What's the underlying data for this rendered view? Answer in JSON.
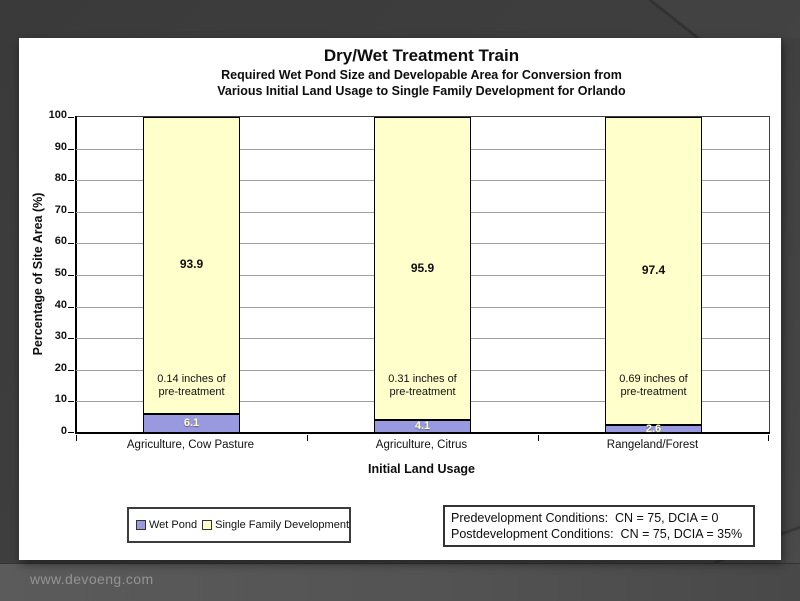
{
  "page": {
    "footer_url": "www.devoeng.com"
  },
  "chart_data": {
    "type": "bar",
    "stacked": true,
    "title": "Dry/Wet Treatment Train",
    "subtitle_lines": [
      "Required Wet Pond Size and Developable Area for Conversion from",
      "Various Initial Land Usage to Single Family Development for Orlando"
    ],
    "categories": [
      "Agriculture, Cow Pasture",
      "Agriculture, Citrus",
      "Rangeland/Forest"
    ],
    "series": [
      {
        "name": "Wet Pond",
        "color": "#9999E0",
        "values": [
          6.1,
          4.1,
          2.6
        ]
      },
      {
        "name": "Single Family Development",
        "color": "#FFFFCC",
        "values": [
          93.9,
          95.9,
          97.4
        ]
      }
    ],
    "bar_annotations": [
      [
        "0.14 inches of",
        "pre-treatment"
      ],
      [
        "0.31 inches of",
        "pre-treatment"
      ],
      [
        "0.69 inches of",
        "pre-treatment"
      ]
    ],
    "xlabel": "Initial Land Usage",
    "ylabel": "Percentage of Site Area (%)",
    "ylim": [
      0,
      100
    ],
    "ytick_step": 10,
    "grid": true,
    "legend_position": "bottom-left"
  },
  "conditions_box": {
    "line1": "Predevelopment Conditions:  CN = 75, DCIA = 0",
    "line2": "Postdevelopment Conditions:  CN = 75, DCIA = 35%"
  },
  "colors": {
    "wet_pond": "#9999E0",
    "single_family_development": "#FFFFCC",
    "page_background": "#3F3F3F",
    "footer_bar": "#555555",
    "slide_background": "#FFFFFF",
    "gridline": "#9E9E9E"
  }
}
